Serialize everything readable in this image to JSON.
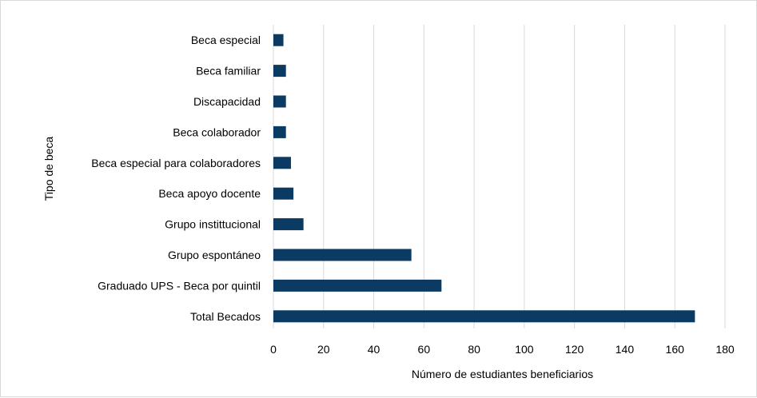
{
  "chart_data": {
    "type": "bar",
    "orientation": "horizontal",
    "title": "",
    "xlabel": "Número de estudiantes beneficiarios",
    "ylabel": "Tipo de beca",
    "xlim": [
      0,
      180
    ],
    "xticks": [
      0,
      20,
      40,
      60,
      80,
      100,
      120,
      140,
      160,
      180
    ],
    "grid": "vertical",
    "bar_color": "#0b3a63",
    "categories": [
      "Beca especial",
      "Beca familiar",
      "Discapacidad",
      "Beca colaborador",
      "Beca especial para colaboradores",
      "Beca apoyo docente",
      "Grupo instittucional",
      "Grupo espontáneo",
      "Graduado UPS - Beca por quintil",
      "Total Becados"
    ],
    "values": [
      4,
      5,
      5,
      5,
      7,
      8,
      12,
      55,
      67,
      168
    ]
  }
}
